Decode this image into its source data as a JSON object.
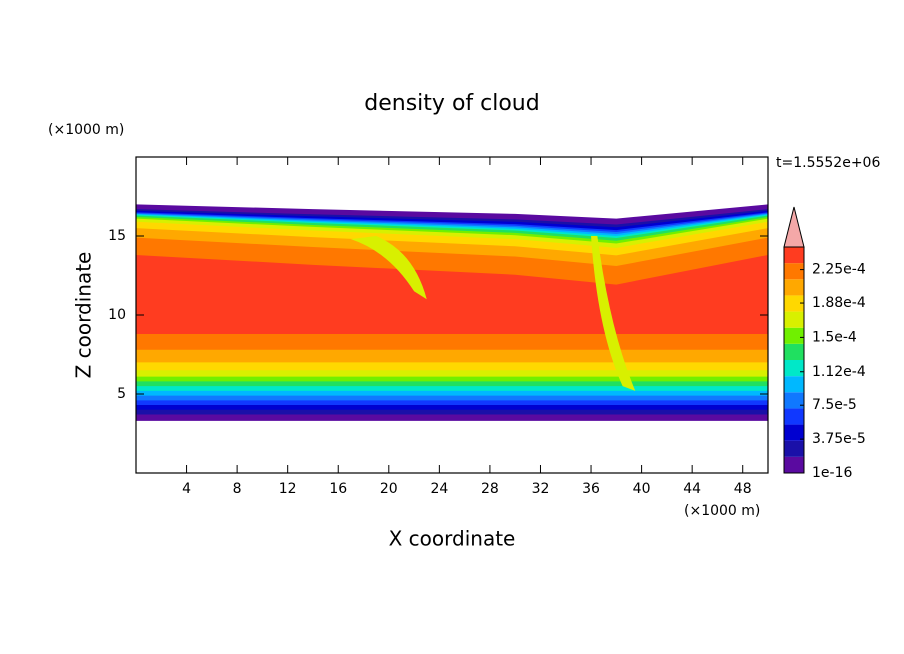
{
  "chart_data": {
    "type": "contour",
    "title": "density of cloud",
    "x_label": "X coordinate",
    "y_label": "Z coordinate",
    "x_unit": "(×1000 m)",
    "y_unit": "(×1000 m)",
    "time_label": "t=1.5552e+06",
    "xlim": [
      0,
      50
    ],
    "xticks": [
      4,
      8,
      12,
      16,
      20,
      24,
      28,
      32,
      36,
      40,
      44,
      48
    ],
    "ylim": [
      0,
      20
    ],
    "yticks": [
      5,
      10,
      15
    ],
    "colorbar": {
      "clim": [
        0,
        0.00025
      ],
      "ticks": [
        {
          "value": 1e-16,
          "label": "1e-16"
        },
        {
          "value": 3.75e-05,
          "label": "3.75e-5"
        },
        {
          "value": 7.5e-05,
          "label": "7.5e-5"
        },
        {
          "value": 0.000112,
          "label": "1.12e-4"
        },
        {
          "value": 0.00015,
          "label": "1.5e-4"
        },
        {
          "value": 0.000188,
          "label": "1.88e-4"
        },
        {
          "value": 0.000225,
          "label": "2.25e-4"
        }
      ],
      "colors": [
        "#5a0aa0",
        "#1a10a8",
        "#0000d0",
        "#1038ff",
        "#1078ff",
        "#00b8ff",
        "#00e8c8",
        "#20e060",
        "#70f000",
        "#d8f000",
        "#ffd800",
        "#ffa800",
        "#ff7800",
        "#ff3c20"
      ],
      "extend_color": "#f4a8a8"
    }
  }
}
